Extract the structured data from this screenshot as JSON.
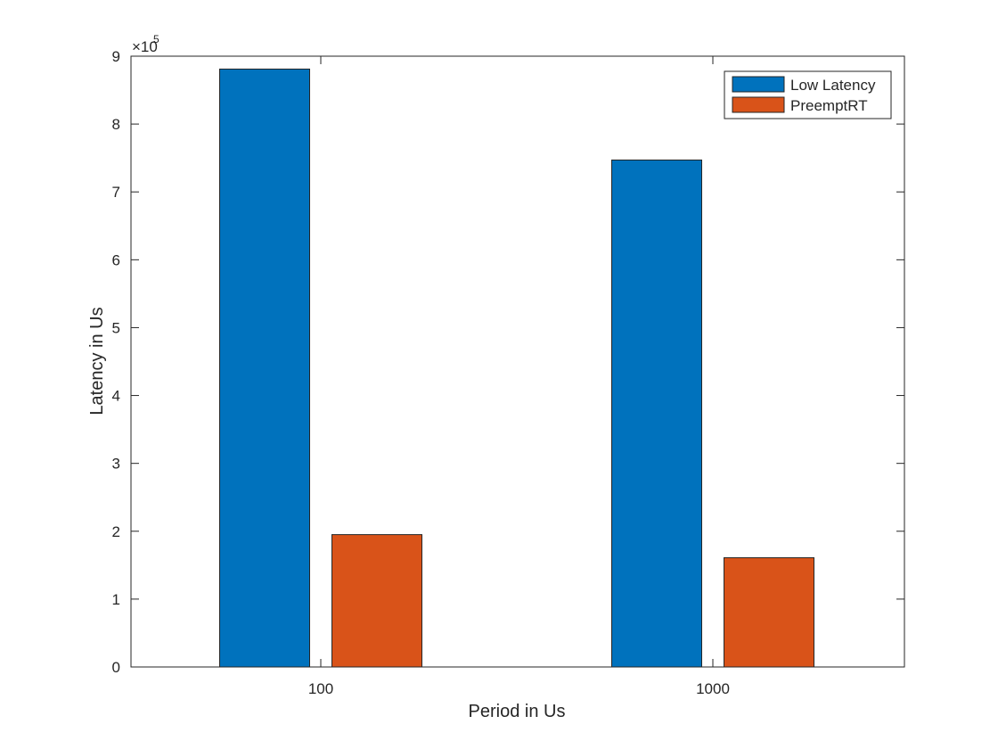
{
  "chart_data": {
    "type": "bar",
    "categories": [
      "100",
      "1000"
    ],
    "series": [
      {
        "name": "Low Latency",
        "values": [
          881000,
          747000
        ],
        "color": "#0072BD"
      },
      {
        "name": "PreemptRT",
        "values": [
          195000,
          161000
        ],
        "color": "#D95319"
      }
    ],
    "xlabel": "Period  in Us",
    "ylabel": "Latency in Us",
    "ylim": [
      0,
      900000
    ],
    "yticks": [
      "0",
      "1",
      "2",
      "3",
      "4",
      "5",
      "6",
      "7",
      "8",
      "9"
    ],
    "y_exponent_base": "×10",
    "y_exponent_power": "5",
    "grid": false,
    "legend_position": "top-right"
  }
}
